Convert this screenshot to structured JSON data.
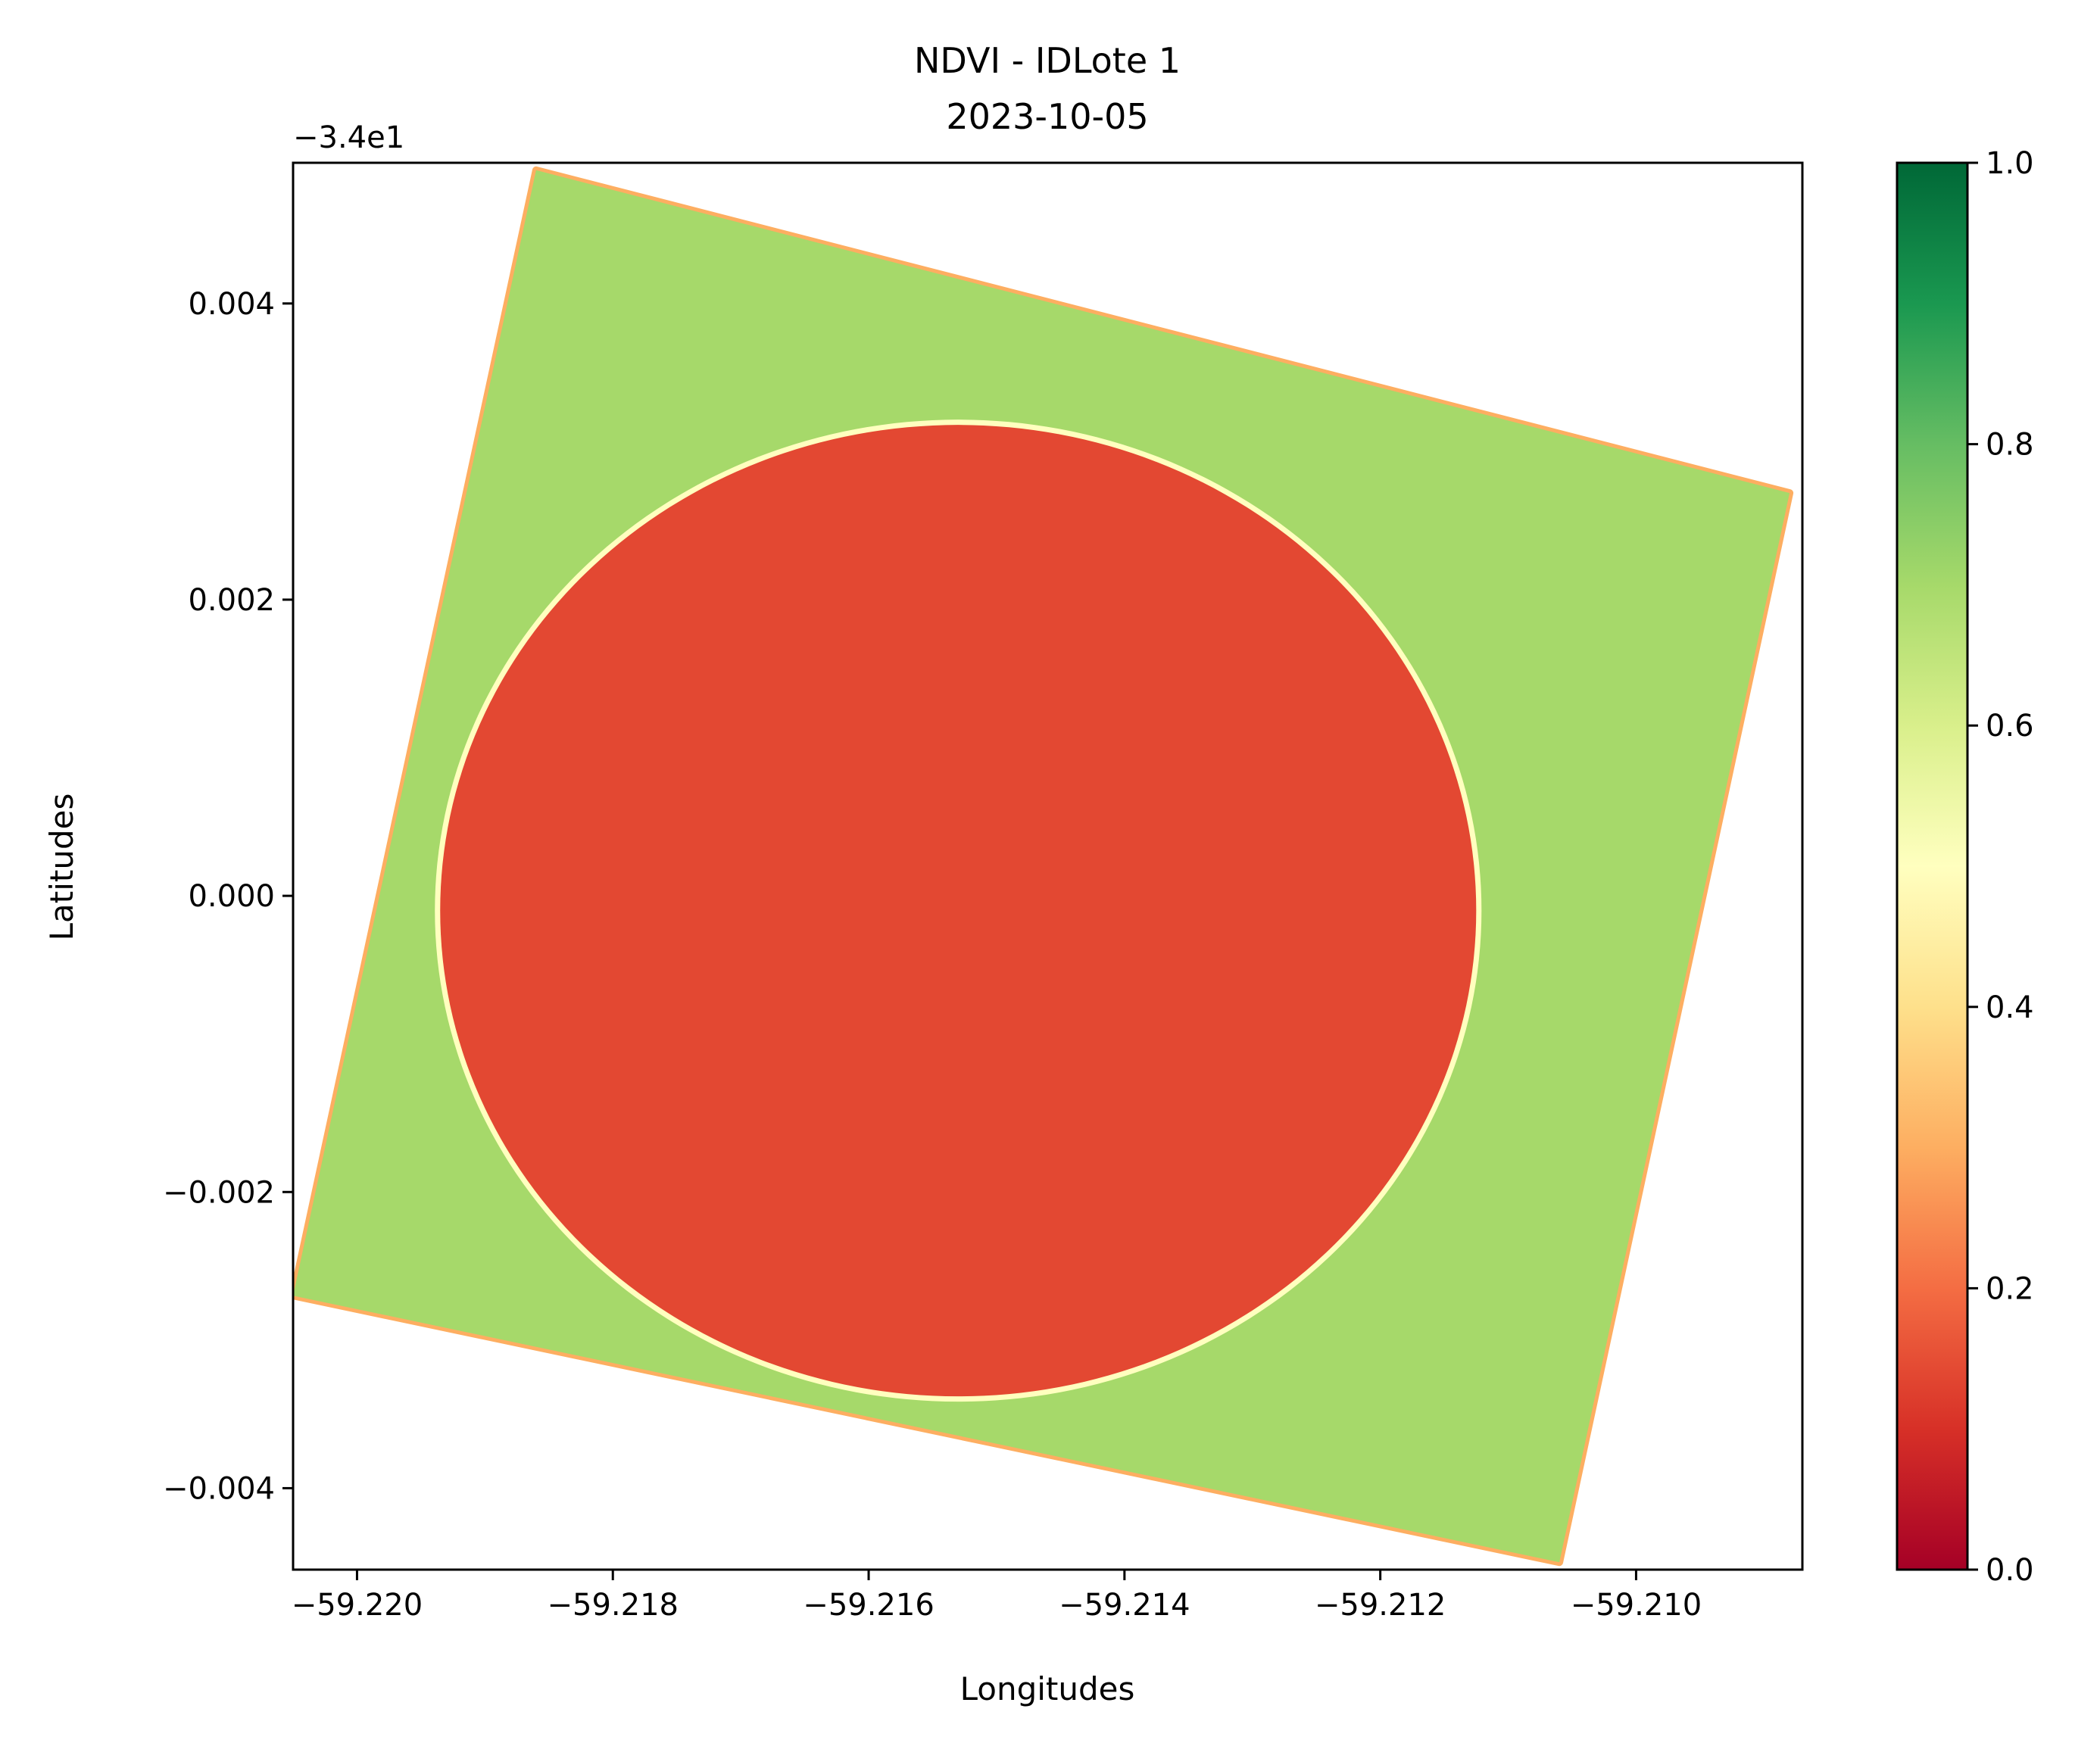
{
  "chart_data": {
    "type": "heatmap",
    "title": "NDVI - IDLote 1",
    "subtitle": "2023-10-05",
    "xlabel": "Longitudes",
    "ylabel": "Latitudes",
    "y_offset_label": "−3.4e1",
    "y_offset": -34,
    "xlim": [
      -59.2205,
      -59.2087
    ],
    "ylim": [
      -0.00455,
      0.00495
    ],
    "x_ticks": [
      -59.22,
      -59.218,
      -59.216,
      -59.214,
      -59.212,
      -59.21
    ],
    "x_tick_labels": [
      "−59.220",
      "−59.218",
      "−59.216",
      "−59.214",
      "−59.212",
      "−59.210"
    ],
    "y_ticks": [
      0.004,
      0.002,
      0.0,
      -0.002,
      -0.004
    ],
    "y_tick_labels": [
      "0.004",
      "0.002",
      "0.000",
      "−0.002",
      "−0.004"
    ],
    "colormap": "RdYlGn",
    "colorbar": {
      "min": 0.0,
      "max": 1.0,
      "ticks": [
        0.0,
        0.2,
        0.4,
        0.6,
        0.8,
        1.0
      ],
      "tick_labels": [
        "0.0",
        "0.2",
        "0.4",
        "0.6",
        "0.8",
        "1.0"
      ]
    },
    "field": {
      "corners": [
        {
          "lon": -59.2186,
          "lat": 0.0049
        },
        {
          "lon": -59.2088,
          "lat": 0.00272
        },
        {
          "lon": -59.2106,
          "lat": -0.0045
        },
        {
          "lon": -59.2205,
          "lat": -0.0027
        }
      ],
      "background_ndvi": 0.7,
      "edge_ndvi": 0.3
    },
    "pivot_circle": {
      "center_lon": -59.2153,
      "center_lat": -0.0001,
      "radius_lon": 0.00405,
      "radius_lat": 0.00328,
      "ndvi": 0.14,
      "border_ndvi": 0.5
    }
  }
}
